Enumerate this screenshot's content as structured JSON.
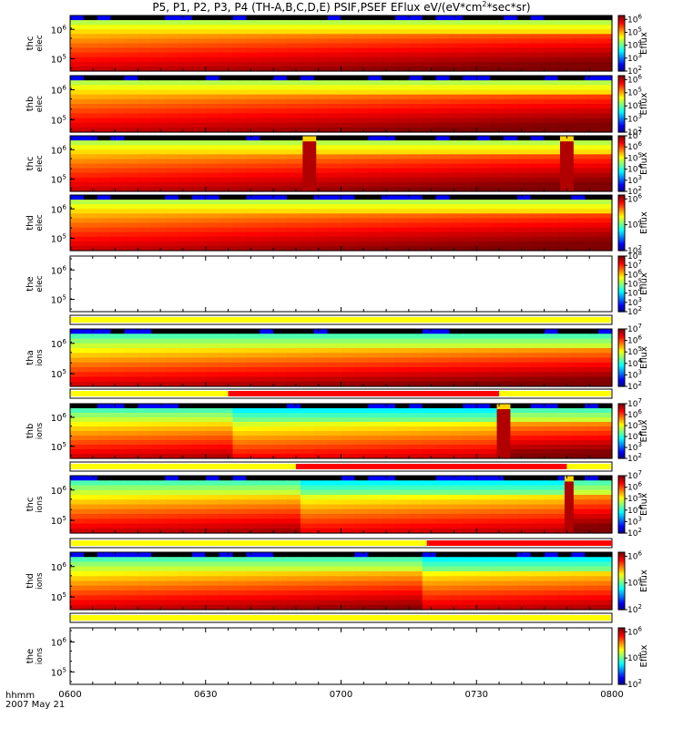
{
  "title": "P5, P1, P2, P3, P4 (TH-A,B,C,D,E) PSIF,PSEF EFlux eV/(eV*cm",
  "title_sup": "2",
  "title_tail": "*sec*sr)",
  "time_axis": {
    "label": "hhmm",
    "date": "2007 May 21",
    "ticks": [
      "0600",
      "0630",
      "0700",
      "0730",
      "0800"
    ],
    "range_minutes": [
      0,
      120
    ]
  },
  "colorbar_label": "Eflux",
  "chart_data": [
    {
      "type": "heatmap",
      "probe": "thc",
      "species": "elec",
      "ylabel": [
        "thc",
        "elec"
      ],
      "yticks": [
        "10^6",
        "10^5"
      ],
      "cbar_exps": [
        2,
        3,
        4,
        5,
        6
      ],
      "gaps": [],
      "cbar_max": 6.3,
      "hot_bars": [],
      "sampled": true
    },
    {
      "type": "heatmap",
      "probe": "thb",
      "species": "elec",
      "ylabel": [
        "thb",
        "elec"
      ],
      "yticks": [
        "10^6",
        "10^5"
      ],
      "cbar_exps": [
        2,
        3,
        4,
        5,
        6
      ],
      "gaps": [],
      "cbar_max": 6.3,
      "hot_bars": [],
      "sampled": true
    },
    {
      "type": "heatmap",
      "probe": "thc",
      "species": "elec",
      "ylabel": [
        "thc",
        "elec"
      ],
      "yticks": [
        "10^6",
        "10^5"
      ],
      "cbar_exps": [
        2,
        3,
        4,
        5,
        6,
        7
      ],
      "gaps": [],
      "cbar_max": 7.0,
      "hot_bars": [
        [
          51.5,
          54.5
        ],
        [
          108.5,
          111.5
        ]
      ],
      "sampled": true
    },
    {
      "type": "heatmap",
      "probe": "thd",
      "species": "elec",
      "ylabel": [
        "thd",
        "elec"
      ],
      "yticks": [
        "10^6",
        "10^5"
      ],
      "cbar_exps": [
        2,
        4,
        6
      ],
      "gaps": [],
      "cbar_max": 6.3,
      "hot_bars": [],
      "sampled": true
    },
    {
      "type": "heatmap",
      "probe": "the",
      "species": "elec",
      "ylabel": [
        "the",
        "elec"
      ],
      "yticks": [
        "10^6",
        "10^5"
      ],
      "cbar_exps": [
        2,
        3,
        4,
        5,
        6,
        7,
        8
      ],
      "gaps": [],
      "cbar_max": 8.0,
      "hot_bars": [],
      "sampled": false
    },
    {
      "type": "heatmap",
      "probe": "tha",
      "species": "ions",
      "ylabel": [
        "tha",
        "ions"
      ],
      "yticks": [
        "10^6",
        "10^5"
      ],
      "cbar_exps": [
        2,
        3,
        4,
        5,
        6,
        7
      ],
      "gaps": [],
      "cbar_max": 7.0,
      "hot_bars": [],
      "sampled": true
    },
    {
      "type": "heatmap",
      "probe": "thb",
      "species": "ions",
      "ylabel": [
        "thb",
        "ions"
      ],
      "yticks": [
        "10^6",
        "10^5"
      ],
      "cbar_exps": [
        2,
        3,
        4,
        5,
        6,
        7
      ],
      "gaps": [
        [
          35.0,
          95.0
        ]
      ],
      "cbar_max": 7.0,
      "hot_bars": [
        [
          94.5,
          97.5
        ]
      ],
      "sampled": true
    },
    {
      "type": "heatmap",
      "probe": "thc",
      "species": "ions",
      "ylabel": [
        "thc",
        "ions"
      ],
      "yticks": [
        "10^6",
        "10^5"
      ],
      "cbar_exps": [
        2,
        3,
        4,
        5,
        6,
        7
      ],
      "gaps": [
        [
          50.0,
          110.0
        ]
      ],
      "cbar_max": 7.0,
      "hot_bars": [
        [
          109.5,
          111.5
        ]
      ],
      "sampled": true
    },
    {
      "type": "heatmap",
      "probe": "thd",
      "species": "ions",
      "ylabel": [
        "thd",
        "ions"
      ],
      "yticks": [
        "10^6",
        "10^5"
      ],
      "cbar_exps": [
        2,
        4,
        6
      ],
      "gaps": [
        [
          79.0,
          120.0
        ]
      ],
      "cbar_max": 6.3,
      "hot_bars": [],
      "sampled": true
    },
    {
      "type": "heatmap",
      "probe": "the",
      "species": "ions",
      "ylabel": [
        "the",
        "ions"
      ],
      "yticks": [
        "10^6",
        "10^5"
      ],
      "cbar_exps": [
        2,
        4,
        6
      ],
      "gaps": [],
      "cbar_max": 6.3,
      "hot_bars": [],
      "sampled": false
    }
  ]
}
